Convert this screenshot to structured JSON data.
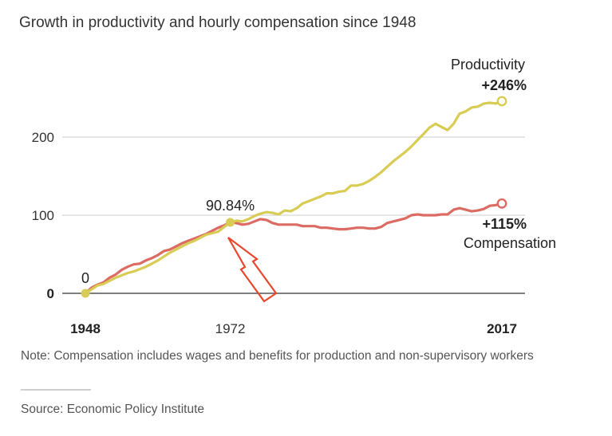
{
  "colors": {
    "productivity": "#d8cc55",
    "compensation": "#dc6b63",
    "gridline": "#cccccc",
    "baseline": "#555555",
    "arrow": "#e8472c"
  },
  "chart_data": {
    "type": "line",
    "title": "Growth in productivity and hourly compensation since 1948",
    "xlabel": "",
    "ylabel": "",
    "xlim": [
      1948,
      2017
    ],
    "ylim": [
      0,
      250
    ],
    "grid": true,
    "y_ticks": [
      {
        "value": 0,
        "label": "0",
        "bold": true
      },
      {
        "value": 100,
        "label": "100",
        "bold": false
      },
      {
        "value": 200,
        "label": "200",
        "bold": false
      }
    ],
    "x_ticks": [
      {
        "value": 1948,
        "label": "1948",
        "bold": true
      },
      {
        "value": 1972,
        "label": "1972",
        "bold": false
      },
      {
        "value": 2017,
        "label": "2017",
        "bold": true
      }
    ],
    "x": [
      1948,
      1949,
      1950,
      1951,
      1952,
      1953,
      1954,
      1955,
      1956,
      1957,
      1958,
      1959,
      1960,
      1961,
      1962,
      1963,
      1964,
      1965,
      1966,
      1967,
      1968,
      1969,
      1970,
      1971,
      1972,
      1973,
      1974,
      1975,
      1976,
      1977,
      1978,
      1979,
      1980,
      1981,
      1982,
      1983,
      1984,
      1985,
      1986,
      1987,
      1988,
      1989,
      1990,
      1991,
      1992,
      1993,
      1994,
      1995,
      1996,
      1997,
      1998,
      1999,
      2000,
      2001,
      2002,
      2003,
      2004,
      2005,
      2006,
      2007,
      2008,
      2009,
      2010,
      2011,
      2012,
      2013,
      2014,
      2015,
      2016,
      2017
    ],
    "series": [
      {
        "name": "Productivity",
        "values": [
          0,
          5,
          10,
          12,
          16,
          20,
          23,
          26,
          28,
          31,
          34,
          38,
          42,
          47,
          52,
          56,
          60,
          64,
          67,
          71,
          75,
          77,
          79,
          85,
          90.84,
          93,
          92,
          95,
          99,
          102,
          104,
          103,
          101,
          106,
          105,
          109,
          115,
          118,
          121,
          124,
          128,
          128,
          130,
          131,
          138,
          138,
          140,
          144,
          149,
          155,
          162,
          169,
          175,
          181,
          188,
          196,
          204,
          212,
          217,
          213,
          209,
          217,
          230,
          233,
          238,
          239,
          243,
          244,
          243,
          246
        ],
        "end_label": "Productivity",
        "end_value_label": "+246%"
      },
      {
        "name": "Compensation",
        "values": [
          0,
          7,
          11,
          14,
          20,
          24,
          30,
          34,
          37,
          38,
          42,
          45,
          49,
          54,
          56,
          60,
          64,
          67,
          70,
          73,
          76,
          80,
          84,
          87,
          90.84,
          90,
          88,
          89,
          92,
          95,
          94,
          90,
          88,
          88,
          88,
          88,
          86,
          86,
          86,
          84,
          84,
          83,
          82,
          82,
          83,
          84,
          84,
          83,
          83,
          85,
          90,
          92,
          94,
          96,
          100,
          101,
          100,
          100,
          100,
          101,
          101,
          107,
          109,
          107,
          105,
          106,
          108,
          112,
          113,
          115
        ],
        "end_label": "Compensation",
        "end_value_label": "+115%"
      }
    ],
    "annotations": [
      {
        "text": "0",
        "x": 1948,
        "y": 0
      },
      {
        "text": "90.84%",
        "x": 1972,
        "y": 90.84
      }
    ]
  },
  "note": "Note: Compensation includes wages and benefits for production and non-supervisory workers",
  "source": "Source: Economic Policy Institute"
}
